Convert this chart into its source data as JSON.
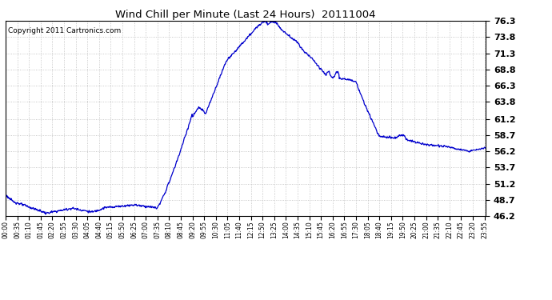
{
  "title": "Wind Chill per Minute (Last 24 Hours)  20111004",
  "copyright_text": "Copyright 2011 Cartronics.com",
  "line_color": "#0000cc",
  "background_color": "#ffffff",
  "plot_bg_color": "#ffffff",
  "grid_color": "#bbbbbb",
  "ylim": [
    46.2,
    76.3
  ],
  "yticks": [
    46.2,
    48.7,
    51.2,
    53.7,
    56.2,
    58.7,
    61.2,
    63.8,
    66.3,
    68.8,
    71.3,
    73.8,
    76.3
  ],
  "tick_interval_minutes": 35,
  "total_minutes": 1440
}
